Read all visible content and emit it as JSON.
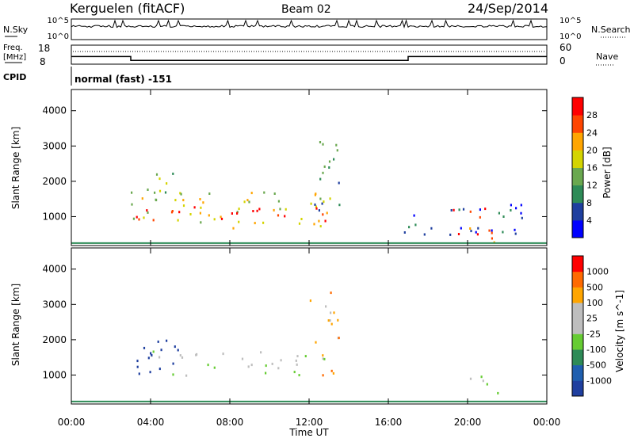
{
  "header": {
    "station": "Kerguelen (fitACF)",
    "beam": "Beam 02",
    "date": "24/Sep/2014"
  },
  "top_panels": {
    "nsky_label": "N.Sky",
    "nsearch_label": "N.Search",
    "count_ticks_left": [
      "10^5",
      "10^0"
    ],
    "count_ticks_right": [
      "10^5",
      "10^0"
    ],
    "freq_label": "Freq.",
    "freq_unit_label": "[MHz]",
    "freq_ticks": [
      "18",
      "8"
    ],
    "nave_label": "Nave",
    "nave_ticks": [
      "60",
      "0"
    ],
    "cpid_label": "CPID",
    "cpid_text": "normal (fast) -151",
    "freq_value_mhz": [
      12,
      10,
      12
    ],
    "freq_breaks_hours": [
      3,
      17
    ]
  },
  "colors": {
    "power_scale": [
      "#0000ff",
      "#1f3f9f",
      "#2e8b57",
      "#6aa84f",
      "#d4d400",
      "#ffa500",
      "#ff4500",
      "#ff0000"
    ],
    "velocity_scale": [
      "#1f3f9f",
      "#1f5faf",
      "#2e8b57",
      "#66cc33",
      "#bebebe",
      "#bebebe",
      "#ffa500",
      "#ff6a00",
      "#ff0000"
    ]
  },
  "chart_data": [
    {
      "type": "heatmap",
      "panel": "power",
      "ylabel": "Slant Range [km]",
      "yticks": [
        "4000",
        "3000",
        "2000",
        "1000"
      ],
      "ylim": [
        180,
        4600
      ],
      "xlim": [
        0,
        24
      ],
      "colorbar_label": "Power [dB]",
      "colorbar_ticks": [
        "28",
        "24",
        "20",
        "16",
        "12",
        "8",
        "4"
      ],
      "regions": [
        {
          "t0": 3.0,
          "t1": 13.5,
          "r0": 700,
          "r1": 1800,
          "level": 4
        },
        {
          "t0": 3.0,
          "t1": 13.2,
          "r0": 900,
          "r1": 1300,
          "level": 7
        },
        {
          "t0": 4.0,
          "t1": 5.8,
          "r0": 1300,
          "r1": 2300,
          "level": 3
        },
        {
          "t0": 12.0,
          "t1": 13.5,
          "r0": 1200,
          "r1": 3400,
          "level": 2
        },
        {
          "t0": 19.0,
          "t1": 21.5,
          "r0": 300,
          "r1": 1300,
          "level": 6
        },
        {
          "t0": 16.5,
          "t1": 23.0,
          "r0": 500,
          "r1": 1400,
          "level": 1
        }
      ]
    },
    {
      "type": "heatmap",
      "panel": "velocity",
      "xlabel": "Time UT",
      "ylabel": "Slant Range [km]",
      "xticks": [
        "00:00",
        "04:00",
        "08:00",
        "12:00",
        "16:00",
        "20:00",
        "00:00"
      ],
      "yticks": [
        "4000",
        "3000",
        "2000",
        "1000"
      ],
      "ylim": [
        180,
        4600
      ],
      "xlim": [
        0,
        24
      ],
      "colorbar_label": "Velocity [m s^-1]",
      "colorbar_ticks": [
        "1000",
        "500",
        "100",
        "25",
        "-25",
        "-100",
        "-500",
        "-1000"
      ],
      "regions": [
        {
          "t0": 4.0,
          "t1": 13.0,
          "r0": 1000,
          "r1": 1700,
          "level": 4
        },
        {
          "t0": 3.0,
          "t1": 5.5,
          "r0": 1000,
          "r1": 2300,
          "level": 0
        },
        {
          "t0": 12.5,
          "t1": 13.3,
          "r0": 600,
          "r1": 1300,
          "level": 7
        },
        {
          "t0": 19.5,
          "t1": 21.5,
          "r0": 500,
          "r1": 1000,
          "level": 4
        },
        {
          "t0": 12.0,
          "t1": 13.5,
          "r0": 1500,
          "r1": 3400,
          "level": 6
        }
      ]
    }
  ]
}
